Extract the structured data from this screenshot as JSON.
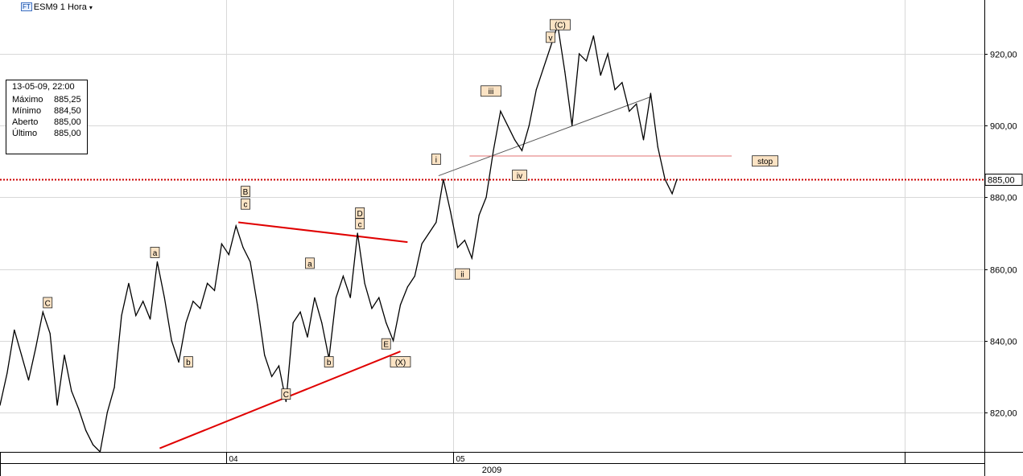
{
  "header": {
    "badge": "FT",
    "title": "ESM9 1 Hora",
    "caret": "▾"
  },
  "info_box": {
    "timestamp": "13-05-09, 22:00",
    "rows": [
      {
        "label": "Máximo",
        "value": "885,25"
      },
      {
        "label": "Mínimo",
        "value": "884,50"
      },
      {
        "label": "Aberto",
        "value": "885,00"
      },
      {
        "label": "Último",
        "value": "885,00"
      }
    ]
  },
  "chart_data": {
    "type": "line",
    "title": "ESM9 1 Hora",
    "ylim": [
      809,
      935
    ],
    "y_ticks": [
      820,
      840,
      860,
      880,
      900,
      920
    ],
    "y_tick_labels": [
      "820,00",
      "840,00",
      "860,00",
      "880,00",
      "900,00",
      "920,00"
    ],
    "x_ticks": [
      {
        "label": "04",
        "x": 95
      },
      {
        "label": "05",
        "x": 190
      }
    ],
    "x_range": [
      0,
      413
    ],
    "year_label": "2009",
    "last_price": {
      "value": 885.0,
      "label": "885,00",
      "color": "#cc0000"
    },
    "series": [
      {
        "points": [
          [
            0,
            822
          ],
          [
            3,
            831
          ],
          [
            6,
            843
          ],
          [
            9,
            836
          ],
          [
            12,
            829
          ],
          [
            15,
            838
          ],
          [
            18,
            848
          ],
          [
            21,
            842
          ],
          [
            24,
            822
          ],
          [
            27,
            836
          ],
          [
            30,
            826
          ],
          [
            33,
            821
          ],
          [
            36,
            815
          ],
          [
            39,
            811
          ],
          [
            42,
            809
          ],
          [
            45,
            820
          ],
          [
            48,
            827
          ],
          [
            51,
            847
          ],
          [
            54,
            856
          ],
          [
            57,
            847
          ],
          [
            60,
            851
          ],
          [
            63,
            846
          ],
          [
            66,
            862
          ],
          [
            69,
            852
          ],
          [
            72,
            840
          ],
          [
            75,
            834
          ],
          [
            78,
            845
          ],
          [
            81,
            851
          ],
          [
            84,
            849
          ],
          [
            87,
            856
          ],
          [
            90,
            854
          ],
          [
            93,
            867
          ],
          [
            96,
            864
          ],
          [
            99,
            872
          ],
          [
            102,
            866
          ],
          [
            105,
            862
          ],
          [
            108,
            850
          ],
          [
            111,
            836
          ],
          [
            114,
            830
          ],
          [
            117,
            833
          ],
          [
            120,
            823
          ],
          [
            123,
            845
          ],
          [
            126,
            848
          ],
          [
            129,
            841
          ],
          [
            132,
            852
          ],
          [
            135,
            845
          ],
          [
            138,
            835
          ],
          [
            141,
            852
          ],
          [
            144,
            858
          ],
          [
            147,
            852
          ],
          [
            150,
            870
          ],
          [
            153,
            856
          ],
          [
            156,
            849
          ],
          [
            159,
            852
          ],
          [
            162,
            845
          ],
          [
            165,
            840
          ],
          [
            168,
            850
          ],
          [
            171,
            855
          ],
          [
            174,
            858
          ],
          [
            177,
            867
          ],
          [
            180,
            870
          ],
          [
            183,
            873
          ],
          [
            186,
            885
          ],
          [
            189,
            876
          ],
          [
            192,
            866
          ],
          [
            195,
            868
          ],
          [
            198,
            863
          ],
          [
            201,
            875
          ],
          [
            204,
            880
          ],
          [
            207,
            893
          ],
          [
            210,
            904
          ],
          [
            213,
            900
          ],
          [
            216,
            896
          ],
          [
            219,
            893
          ],
          [
            222,
            900
          ],
          [
            225,
            910
          ],
          [
            228,
            916
          ],
          [
            231,
            922
          ],
          [
            234,
            928
          ],
          [
            237,
            915
          ],
          [
            240,
            900
          ],
          [
            243,
            920
          ],
          [
            246,
            918
          ],
          [
            249,
            925
          ],
          [
            252,
            914
          ],
          [
            255,
            920
          ],
          [
            258,
            910
          ],
          [
            261,
            912
          ],
          [
            264,
            904
          ],
          [
            267,
            906
          ],
          [
            270,
            896
          ],
          [
            273,
            909
          ],
          [
            276,
            894
          ],
          [
            279,
            885
          ],
          [
            282,
            881
          ],
          [
            284,
            885
          ]
        ]
      }
    ],
    "wave_labels": [
      {
        "text": "C",
        "x": 20,
        "y": 850.5
      },
      {
        "text": "a",
        "x": 65,
        "y": 864.5
      },
      {
        "text": "b",
        "x": 79,
        "y": 834
      },
      {
        "text": "B",
        "x": 103,
        "y": 881.5
      },
      {
        "text": "c",
        "x": 103,
        "y": 878
      },
      {
        "text": "a",
        "x": 130,
        "y": 861.5
      },
      {
        "text": "C",
        "x": 120,
        "y": 825
      },
      {
        "text": "b",
        "x": 138,
        "y": 834
      },
      {
        "text": "D",
        "x": 151,
        "y": 875.5
      },
      {
        "text": "c",
        "x": 151,
        "y": 872.5
      },
      {
        "text": "E",
        "x": 162,
        "y": 839
      },
      {
        "text": "(X)",
        "x": 168,
        "y": 834
      },
      {
        "text": "i",
        "x": 183,
        "y": 890.5
      },
      {
        "text": "ii",
        "x": 194,
        "y": 858.5
      },
      {
        "text": "iii",
        "x": 206,
        "y": 909.5
      },
      {
        "text": "iv",
        "x": 218,
        "y": 886
      },
      {
        "text": "v",
        "x": 231,
        "y": 924.5
      },
      {
        "text": "(C)",
        "x": 235,
        "y": 928
      },
      {
        "text": "stop",
        "x": 321,
        "y": 890
      }
    ],
    "lines": [
      {
        "color": "#e00000",
        "width": 2,
        "from": [
          100,
          873
        ],
        "to": [
          171,
          867.5
        ]
      },
      {
        "color": "#e00000",
        "width": 2,
        "from": [
          67,
          810
        ],
        "to": [
          168,
          837
        ]
      },
      {
        "color": "#555555",
        "width": 1,
        "from": [
          184,
          886
        ],
        "to": [
          273,
          908
        ]
      },
      {
        "color": "#e07070",
        "width": 1,
        "from": [
          197,
          891.5
        ],
        "to": [
          307,
          891.5
        ]
      }
    ]
  }
}
